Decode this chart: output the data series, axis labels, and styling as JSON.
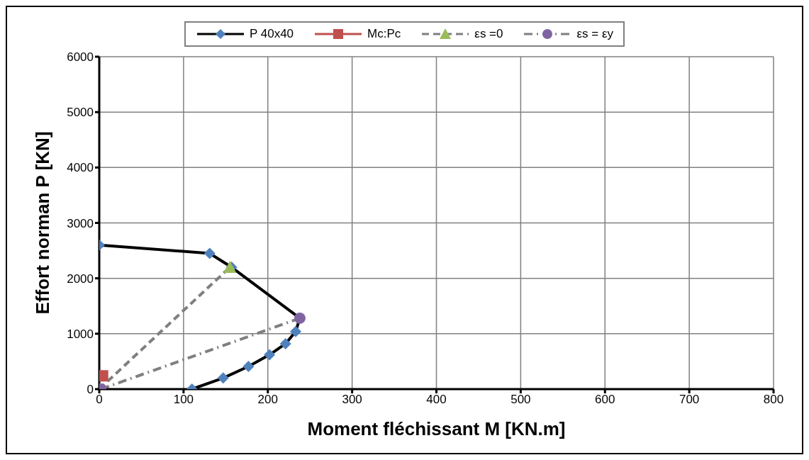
{
  "chart_data": {
    "type": "line",
    "xlabel": "Moment fléchissant M  [KN.m]",
    "ylabel": "Effort norman P [KN]",
    "xlim": [
      0,
      800
    ],
    "xticks": [
      0,
      100,
      200,
      300,
      400,
      500,
      600,
      700,
      800
    ],
    "ylim": [
      0,
      6000
    ],
    "yticks": [
      0,
      1000,
      2000,
      3000,
      4000,
      5000,
      6000
    ],
    "grid": true,
    "legend": "top",
    "series": [
      {
        "name": "P 40x40",
        "color": "#000000",
        "colors": [
          "#4f81bd",
          "#4f81bd",
          "#4f81bd",
          "#4f81bd",
          "#4f81bd",
          "#4f81bd",
          "#4f81bd",
          "#4f81bd",
          "#4f81bd",
          "#4f81bd"
        ],
        "marker": "diamond",
        "line_style": "solid",
        "x": [
          0,
          131,
          157,
          238,
          233,
          221,
          202,
          177,
          147,
          110
        ],
        "values": [
          2600,
          2450,
          2200,
          1280,
          1040,
          820,
          620,
          410,
          200,
          0
        ]
      },
      {
        "name": "Mc:Pc",
        "color": "#c0504d",
        "marker": "square",
        "line_style": "solid",
        "x": [
          4
        ],
        "values": [
          240
        ]
      },
      {
        "name": "εs =0",
        "color": "#7f7f7f",
        "colors": [
          "#9bbb59",
          "#9bbb59"
        ],
        "marker": "triangle",
        "line_style": "dashed",
        "x": [
          0,
          155
        ],
        "values": [
          0,
          2200
        ]
      },
      {
        "name": "εs = εy",
        "color": "#7f7f7f",
        "colors": [
          "#8064a2",
          "#8064a2"
        ],
        "marker": "circle",
        "line_style": "dashdot",
        "x": [
          2,
          238
        ],
        "values": [
          0,
          1280
        ]
      }
    ]
  }
}
